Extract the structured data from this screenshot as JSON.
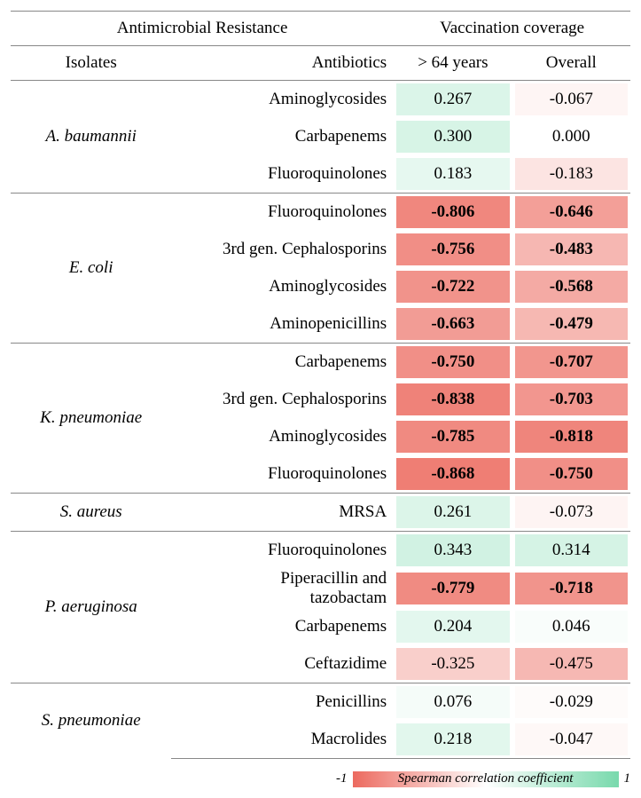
{
  "header": {
    "amr": "Antimicrobial Resistance",
    "vacc": "Vaccination coverage",
    "isolates": "Isolates",
    "antibiotics": "Antibiotics",
    "col1": "> 64 years",
    "col2": "Overall"
  },
  "colors": {
    "neg": "#ec6a5f",
    "pos": "#78d9ac",
    "mid": "#ffffff",
    "border": "#888888",
    "text": "#000000"
  },
  "legend": {
    "min": "-1",
    "max": "1",
    "label": "Spearman correlation coefficient"
  },
  "groups": [
    {
      "isolate": "A. baumannii",
      "rows": [
        {
          "ab": "Aminoglycosides",
          "v1": 0.267,
          "v2": -0.067,
          "bold": false
        },
        {
          "ab": "Carbapenems",
          "v1": 0.3,
          "v2": 0.0,
          "bold": false
        },
        {
          "ab": "Fluoroquinolones",
          "v1": 0.183,
          "v2": -0.183,
          "bold": false
        }
      ]
    },
    {
      "isolate": "E. coli",
      "rows": [
        {
          "ab": "Fluoroquinolones",
          "v1": -0.806,
          "v2": -0.646,
          "bold": true
        },
        {
          "ab": "3rd gen. Cephalosporins",
          "v1": -0.756,
          "v2": -0.483,
          "bold": true
        },
        {
          "ab": "Aminoglycosides",
          "v1": -0.722,
          "v2": -0.568,
          "bold": true
        },
        {
          "ab": "Aminopenicillins",
          "v1": -0.663,
          "v2": -0.479,
          "bold": true
        }
      ]
    },
    {
      "isolate": "K. pneumoniae",
      "rows": [
        {
          "ab": "Carbapenems",
          "v1": -0.75,
          "v2": -0.707,
          "bold": true
        },
        {
          "ab": "3rd gen. Cephalosporins",
          "v1": -0.838,
          "v2": -0.703,
          "bold": true
        },
        {
          "ab": "Aminoglycosides",
          "v1": -0.785,
          "v2": -0.818,
          "bold": true
        },
        {
          "ab": "Fluoroquinolones",
          "v1": -0.868,
          "v2": -0.75,
          "bold": true
        }
      ]
    },
    {
      "isolate": "S. aureus",
      "rows": [
        {
          "ab": "MRSA",
          "v1": 0.261,
          "v2": -0.073,
          "bold": false
        }
      ]
    },
    {
      "isolate": "P. aeruginosa",
      "rows": [
        {
          "ab": "Fluoroquinolones",
          "v1": 0.343,
          "v2": 0.314,
          "bold": false
        },
        {
          "ab": "Piperacillin and tazobactam",
          "v1": -0.779,
          "v2": -0.718,
          "bold": true
        },
        {
          "ab": "Carbapenems",
          "v1": 0.204,
          "v2": 0.046,
          "bold": false
        },
        {
          "ab": "Ceftazidime",
          "v1": -0.325,
          "v2": -0.475,
          "bold": false
        }
      ]
    },
    {
      "isolate": "S. pneumoniae",
      "rows": [
        {
          "ab": "Penicillins",
          "v1": 0.076,
          "v2": -0.029,
          "bold": false
        },
        {
          "ab": "Macrolides",
          "v1": 0.218,
          "v2": -0.047,
          "bold": false
        }
      ]
    }
  ]
}
